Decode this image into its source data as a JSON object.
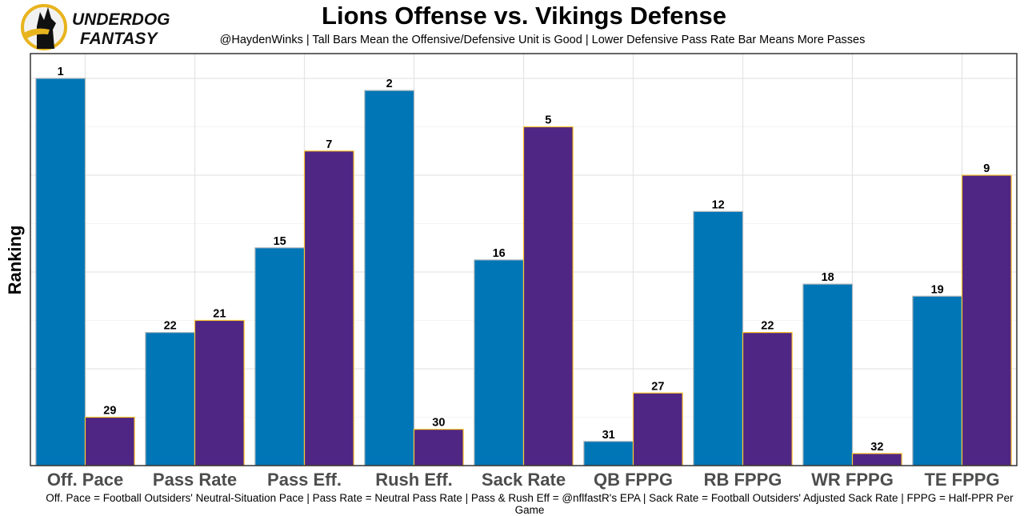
{
  "logo": {
    "line1": "UNDERDOG",
    "line2": "FANTASY",
    "icon": "underdog-dog-icon"
  },
  "chart_data": {
    "type": "bar",
    "title": "Lions Offense vs. Vikings Defense",
    "subtitle": "@HaydenWinks | Tall Bars Mean the Offensive/Defensive Unit is Good | Lower Defensive Pass Rate Bar Means More Passes",
    "caption": "Off. Pace = Football Outsiders' Neutral-Situation Pace | Pass Rate = Neutral Pass Rate | Pass & Rush Eff = @nflfastR's EPA | Sack Rate = Football Outsiders' Adjusted Sack Rate | FPPG = Half-PPR Per Game",
    "xlabel": "",
    "ylabel": "Ranking",
    "categories": [
      "Off. Pace",
      "Pass Rate",
      "Pass Eff.",
      "Rush Eff.",
      "Sack Rate",
      "QB FPPG",
      "RB FPPG",
      "WR FPPG",
      "TE FPPG"
    ],
    "series": [
      {
        "name": "Lions Offense",
        "color": "#0076B6",
        "edge": "#B0B7BC",
        "values": [
          1,
          22,
          15,
          2,
          16,
          31,
          12,
          18,
          19
        ]
      },
      {
        "name": "Vikings Defense",
        "color": "#4F2683",
        "edge": "#FFC62F",
        "values": [
          29,
          21,
          7,
          30,
          5,
          27,
          22,
          32,
          9
        ]
      }
    ],
    "value_transform": "bar height = 33 - ranking (rank 1 tallest)",
    "ylim_ranking": [
      33,
      0
    ],
    "y_ticks_shown": false,
    "grid": true,
    "legend": "none"
  }
}
